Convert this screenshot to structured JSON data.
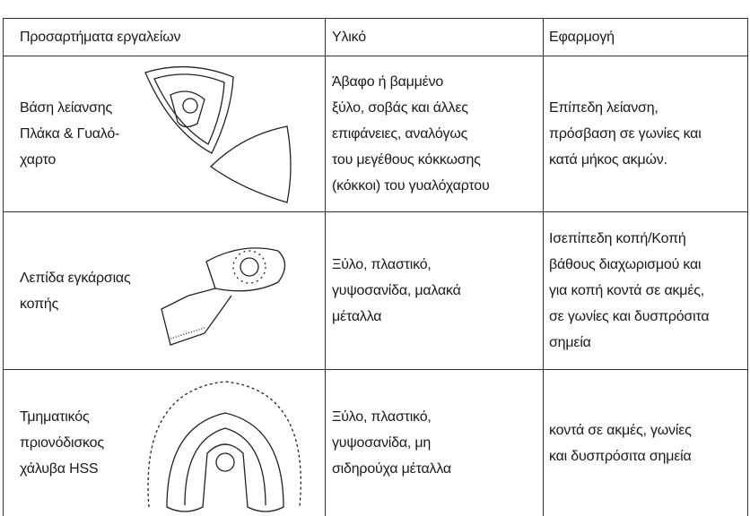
{
  "table": {
    "header": [
      "Προσαρτήματα εργαλείων",
      "Υλικό",
      "Εφαρμογή"
    ],
    "rows": [
      {
        "cells": [
          [
            "Βάση λείανσης",
            "Πλάκα & Γυαλό-",
            "χαρτο"
          ],
          [
            "Άβαφο ή βαμμένο",
            "ξύλο, σοβάς και άλλες",
            "επιφάνειες, αναλόγως",
            "του μεγέθους κόκκωσης",
            "(κόκκοι) του γυαλόχαρτου"
          ],
          [
            "Επίπεδη λείανση,",
            "πρόσβαση σε γωνίες και",
            "κατά μήκος ακμών."
          ]
        ]
      },
      {
        "cells": [
          [
            "Λεπίδα εγκάρσιας",
            "κοπής"
          ],
          [
            "Ξύλο, πλαστικό,",
            "γυψοσανίδα, μαλακά",
            "μέταλλα"
          ],
          [
            "Ισεπίπεδη κοπή/Κοπή",
            "βάθους διαχωρισμού και",
            "για κοπή κοντά σε ακμές,",
            "σε γωνίες και δυσπρόσιτα",
            "σημεία"
          ]
        ]
      },
      {
        "cells": [
          [
            "Τμηματικός",
            "πριονόδισκος",
            "χάλυβα HSS"
          ],
          [
            "Ξύλο, πλαστικό,",
            "γυψοσανίδα, μη",
            "σιδηρούχα μέταλλα"
          ],
          [
            "κοντά σε ακμές, γωνίες",
            "και δυσπρόσιτα σημεία"
          ]
        ]
      }
    ]
  }
}
